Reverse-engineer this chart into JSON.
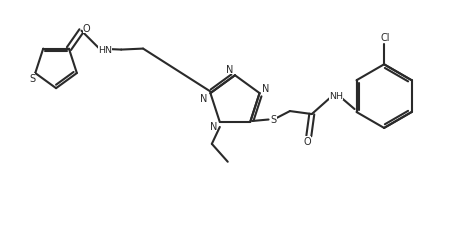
{
  "bg_color": "#ffffff",
  "line_color": "#2a2a2a",
  "line_width": 1.5,
  "figsize": [
    4.65,
    2.32
  ],
  "dpi": 100,
  "xlim": [
    0,
    46.5
  ],
  "ylim": [
    0,
    23.2
  ]
}
